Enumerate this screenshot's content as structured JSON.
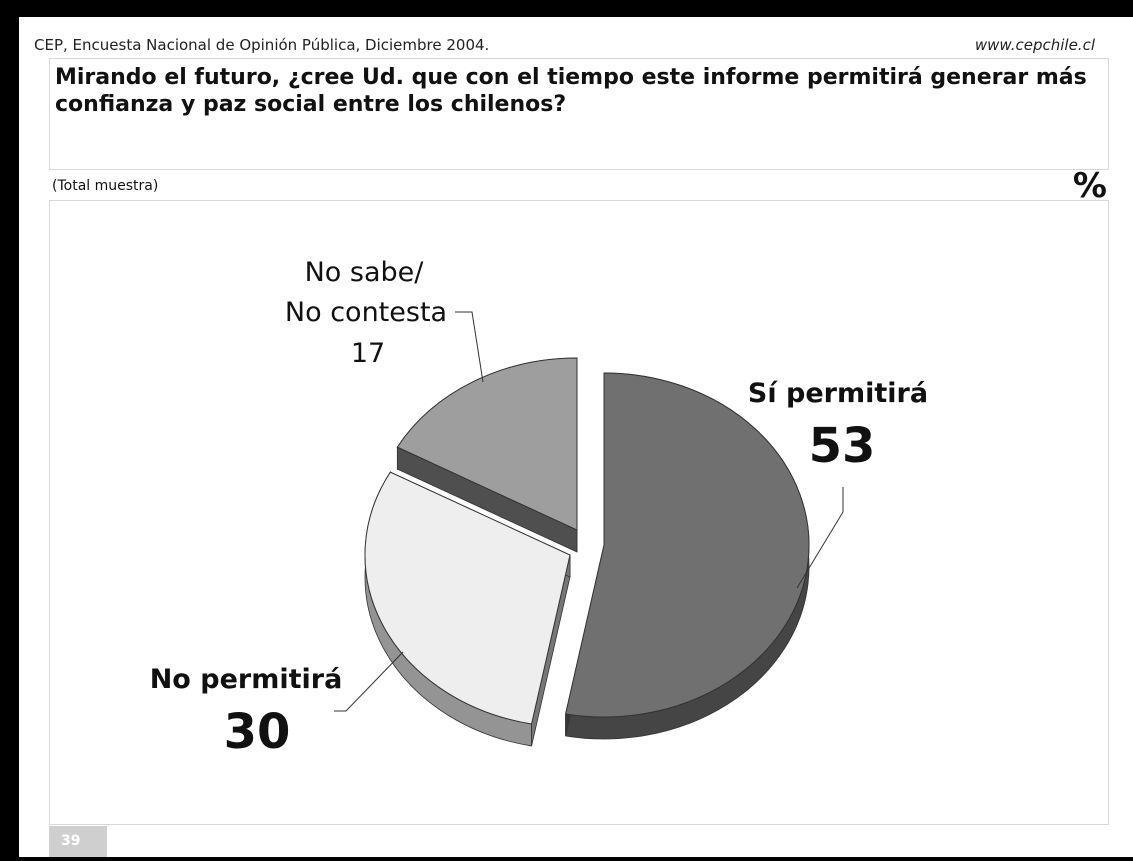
{
  "header": {
    "source": "CEP, Encuesta Nacional de Opinión Pública, Diciembre 2004.",
    "url": "www.cepchile.cl"
  },
  "question": "Mirando el futuro, ¿cree Ud. que con el tiempo este informe permitirá generar más confianza y paz social entre los chilenos?",
  "sample_note": "(Total muestra)",
  "percent_sign": "%",
  "page_number": "39",
  "colors": {
    "si_permitira": "#707070",
    "no_permitira": "#eeeeee",
    "no_sabe": "#9e9e9e"
  },
  "chart_data": {
    "type": "pie",
    "style": "3d-exploded",
    "slices": [
      {
        "label": "Sí permitirá",
        "value": 53
      },
      {
        "label": "No permitirá",
        "value": 30
      },
      {
        "label": "No sabe/ No contesta",
        "value": 17
      }
    ]
  },
  "labels": {
    "si_permitira": "Sí permitirá",
    "si_value": "53",
    "no_permitira": "No permitirá",
    "no_value": "30",
    "nosabe_line1": "No sabe/",
    "nosabe_line2": "No contesta",
    "nosabe_value": "17"
  }
}
